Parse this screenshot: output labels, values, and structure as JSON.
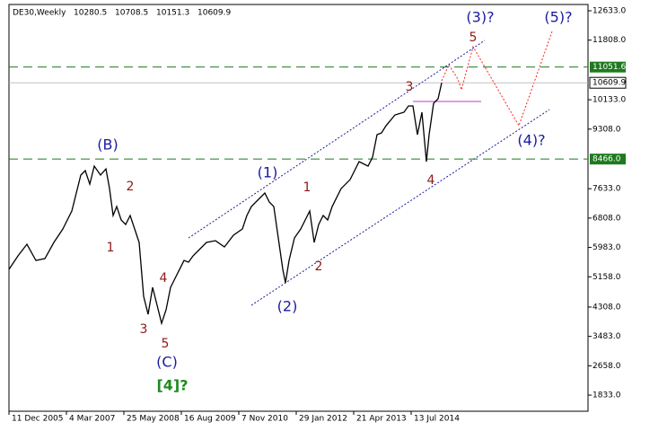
{
  "chart_data": {
    "type": "line",
    "title": "DE30,Weekly",
    "ohlc": [
      10280.5,
      10708.5,
      10151.3,
      10609.9
    ],
    "x": [
      0,
      10,
      20,
      30,
      40,
      50,
      60,
      70,
      80,
      85,
      90,
      95,
      102,
      108,
      112,
      116,
      120,
      125,
      130,
      135,
      140,
      145,
      150,
      155,
      160,
      165,
      170,
      175,
      180,
      185,
      190,
      195,
      200,
      205,
      210,
      220,
      230,
      240,
      250,
      260,
      265,
      270,
      280,
      285,
      290,
      295,
      300,
      305,
      308,
      312,
      318,
      325,
      330,
      335,
      340,
      345,
      350,
      355,
      360,
      370,
      380,
      390,
      400,
      405,
      410,
      415,
      420,
      430,
      440,
      445,
      450,
      455,
      460,
      465,
      468,
      473,
      478,
      482
    ],
    "series": [
      {
        "color": "#000000",
        "values": [
          5366,
          5745,
          6073,
          5618,
          5669,
          6123,
          6502,
          7006,
          8016,
          8142,
          7763,
          8268,
          8016,
          8192,
          7637,
          6880,
          7132,
          6754,
          6628,
          6880,
          6502,
          6123,
          4609,
          4104,
          4861,
          4357,
          3852,
          4231,
          4861,
          5114,
          5366,
          5618,
          5568,
          5745,
          5871,
          6123,
          6173,
          5997,
          6325,
          6502,
          6880,
          7132,
          7385,
          7511,
          7259,
          7132,
          6249,
          5366,
          4988,
          5618,
          6249,
          6502,
          6754,
          7006,
          6123,
          6628,
          6880,
          6754,
          7132,
          7637,
          7889,
          8394,
          8268,
          8520,
          9151,
          9201,
          9403,
          9706,
          9782,
          9958,
          9958,
          9151,
          9782,
          8394,
          9151,
          10034,
          10160,
          10609.9
        ]
      }
    ],
    "xlim": [
      0,
      645
    ],
    "ylim": [
      1380,
      12936
    ],
    "xticks": [
      {
        "value": 0,
        "label": "11 Dec 2005"
      },
      {
        "value": 64,
        "label": "4 Mar 2007"
      },
      {
        "value": 128,
        "label": "25 May 2008"
      },
      {
        "value": 192,
        "label": "16 Aug 2009"
      },
      {
        "value": 256,
        "label": "7 Nov 2010"
      },
      {
        "value": 320,
        "label": "29 Jan 2012"
      },
      {
        "value": 384,
        "label": "21 Apr 2013"
      },
      {
        "value": 448,
        "label": "13 Jul 2014"
      }
    ],
    "yticks": [
      {
        "value": 12633,
        "label": "12633.0"
      },
      {
        "value": 11808,
        "label": "11808.0"
      },
      {
        "value": 10133,
        "label": "10133.0"
      },
      {
        "value": 9308,
        "label": "9308.0"
      },
      {
        "value": 7633,
        "label": "7633.0"
      },
      {
        "value": 6808,
        "label": "6808.0"
      },
      {
        "value": 5983,
        "label": "5983.0"
      },
      {
        "value": 5158,
        "label": "5158.0"
      },
      {
        "value": 4308,
        "label": "4308.0"
      },
      {
        "value": 3483,
        "label": "3483.0"
      },
      {
        "value": 2658,
        "label": "2658.0"
      },
      {
        "value": 1833,
        "label": "1833.0"
      }
    ],
    "levels": [
      {
        "value": 11051.6,
        "label": "11051.6",
        "color": "#1e7a1e"
      },
      {
        "value": 8466,
        "label": "8466.0",
        "color": "#1e7a1e"
      }
    ],
    "price_line": 10609.9,
    "annotations": [
      "(B)",
      "(1)",
      "(2)",
      "(3)?",
      "(4)?",
      "(5)?",
      "(C)",
      "[4]?",
      "1",
      "2",
      "3",
      "4",
      "5",
      "1",
      "2",
      "3",
      "4",
      "5"
    ]
  }
}
